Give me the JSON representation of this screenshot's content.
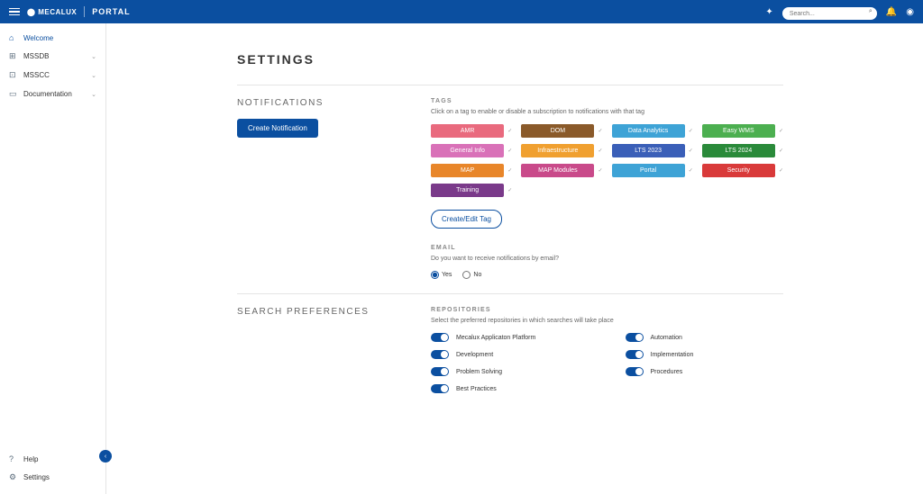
{
  "topbar": {
    "brand": "MECALUX",
    "portal": "PORTAL",
    "search_placeholder": "Search..."
  },
  "sidebar": {
    "items": [
      {
        "label": "Welcome",
        "icon": "⌂",
        "expandable": false,
        "active": true
      },
      {
        "label": "MSSDB",
        "icon": "⊞",
        "expandable": true
      },
      {
        "label": "MSSCC",
        "icon": "⊡",
        "expandable": true
      },
      {
        "label": "Documentation",
        "icon": "▭",
        "expandable": true
      }
    ],
    "footer": [
      {
        "label": "Help",
        "icon": "?"
      },
      {
        "label": "Settings",
        "icon": "⚙"
      }
    ]
  },
  "page": {
    "title": "SETTINGS"
  },
  "notifications": {
    "heading": "NOTIFICATIONS",
    "create_btn": "Create Notification",
    "tags_label": "TAGS",
    "tags_desc": "Click on a tag to enable or disable a subscription to notifications with that tag",
    "tags": [
      {
        "label": "AMR",
        "color": "#e96a7e"
      },
      {
        "label": "DOM",
        "color": "#8a5a2a"
      },
      {
        "label": "Data Analytics",
        "color": "#3ea3d6"
      },
      {
        "label": "Easy WMS",
        "color": "#4caf50"
      },
      {
        "label": "General Info",
        "color": "#d971b8"
      },
      {
        "label": "Infraestructure",
        "color": "#f0a030"
      },
      {
        "label": "LTS 2023",
        "color": "#3a5fb8"
      },
      {
        "label": "LTS 2024",
        "color": "#2a8a3a"
      },
      {
        "label": "MAP",
        "color": "#e8862a"
      },
      {
        "label": "MAP Modules",
        "color": "#c94a8a"
      },
      {
        "label": "Portal",
        "color": "#3ea3d6"
      },
      {
        "label": "Security",
        "color": "#d93a3a"
      },
      {
        "label": "Training",
        "color": "#7a3a8a"
      }
    ],
    "edit_tag_btn": "Create/Edit Tag",
    "email_label": "EMAIL",
    "email_desc": "Do you want to receive notifications by email?",
    "email_yes": "Yes",
    "email_no": "No",
    "email_value": "yes"
  },
  "search_prefs": {
    "heading": "SEARCH PREFERENCES",
    "repos_label": "REPOSITORIES",
    "repos_desc": "Select the preferred repositories in which searches will take place",
    "repos": [
      {
        "label": "Mecalux Applicaton Platform",
        "on": true
      },
      {
        "label": "Automation",
        "on": true
      },
      {
        "label": "Development",
        "on": true
      },
      {
        "label": "Implementation",
        "on": true
      },
      {
        "label": "Problem Solving",
        "on": true
      },
      {
        "label": "Procedures",
        "on": true
      },
      {
        "label": "Best Practices",
        "on": true
      }
    ]
  },
  "colors": {
    "primary": "#0b4fa0",
    "border": "#e5e5e5",
    "text_muted": "#666"
  }
}
